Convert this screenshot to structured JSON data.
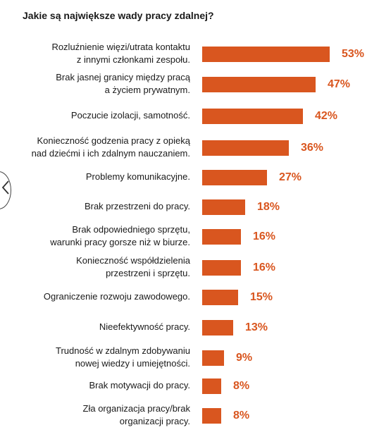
{
  "chart_data": {
    "type": "bar",
    "orientation": "horizontal",
    "title": "Jakie są największe wady pracy zdalnej?",
    "categories": [
      [
        "Rozluźnienie więzi/utrata kontaktu",
        "z innymi członkami zespołu."
      ],
      [
        "Brak jasnej granicy między pracą",
        "a życiem prywatnym."
      ],
      [
        "Poczucie izolacji, samotność."
      ],
      [
        "Konieczność godzenia pracy z opieką",
        "nad dziećmi i ich zdalnym nauczaniem."
      ],
      [
        "Problemy komunikacyjne."
      ],
      [
        "Brak przestrzeni do pracy."
      ],
      [
        "Brak odpowiedniego sprzętu,",
        "warunki pracy gorsze niż w biurze."
      ],
      [
        "Konieczność współdzielenia",
        "przestrzeni i sprzętu."
      ],
      [
        "Ograniczenie rozwoju zawodowego."
      ],
      [
        "Nieefektywność pracy."
      ],
      [
        "Trudność w zdalnym zdobywaniu",
        "nowej wiedzy i umiejętności."
      ],
      [
        "Brak motywacji do pracy."
      ],
      [
        "Zła organizacja pracy/brak",
        "organizacji pracy."
      ]
    ],
    "values": [
      53,
      47,
      42,
      36,
      27,
      18,
      16,
      16,
      15,
      13,
      9,
      8,
      8
    ],
    "value_labels": [
      "53%",
      "47%",
      "42%",
      "36%",
      "27%",
      "18%",
      "16%",
      "16%",
      "15%",
      "13%",
      "9%",
      "8%",
      "8%"
    ],
    "unit": "%",
    "xlim": [
      0,
      53
    ],
    "grid": false,
    "legend": "none",
    "bar_color": "#d9561f"
  },
  "nav": {
    "prev_icon": "chevron-left-icon"
  }
}
